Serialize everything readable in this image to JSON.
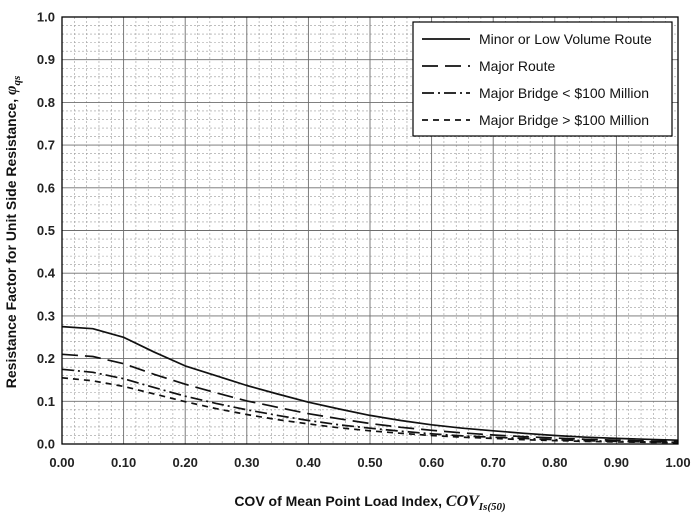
{
  "chart_data": {
    "type": "line",
    "title": "",
    "xlabel": "COV of Mean Point Load Index, ",
    "xlabel_symbol": "COV",
    "xlabel_subscript": "Is(50)",
    "ylabel": "Resistance Factor for Unit Side Resistance, ",
    "ylabel_symbol": "φ",
    "ylabel_subscript": "qs",
    "xlim": [
      0.0,
      1.0
    ],
    "ylim": [
      0.0,
      1.0
    ],
    "x_ticks": [
      "0.00",
      "0.10",
      "0.20",
      "0.30",
      "0.40",
      "0.50",
      "0.60",
      "0.70",
      "0.80",
      "0.90",
      "1.00"
    ],
    "y_ticks": [
      "0.0",
      "0.1",
      "0.2",
      "0.3",
      "0.4",
      "0.5",
      "0.6",
      "0.7",
      "0.8",
      "0.9",
      "1.0"
    ],
    "grid": true,
    "legend_position": "top-right",
    "series": [
      {
        "name": "Minor or Low Volume Route",
        "dash": "solid",
        "x": [
          0.0,
          0.05,
          0.1,
          0.15,
          0.2,
          0.25,
          0.3,
          0.35,
          0.4,
          0.45,
          0.5,
          0.55,
          0.6,
          0.65,
          0.7,
          0.75,
          0.8,
          0.85,
          0.9,
          0.95,
          1.0
        ],
        "y": [
          0.275,
          0.27,
          0.25,
          0.215,
          0.183,
          0.16,
          0.137,
          0.117,
          0.098,
          0.082,
          0.067,
          0.055,
          0.045,
          0.037,
          0.031,
          0.025,
          0.02,
          0.016,
          0.013,
          0.011,
          0.009
        ]
      },
      {
        "name": "Major Route",
        "dash": "longdash",
        "x": [
          0.0,
          0.05,
          0.1,
          0.15,
          0.2,
          0.25,
          0.3,
          0.35,
          0.4,
          0.45,
          0.5,
          0.55,
          0.6,
          0.65,
          0.7,
          0.75,
          0.8,
          0.85,
          0.9,
          0.95,
          1.0
        ],
        "y": [
          0.21,
          0.205,
          0.188,
          0.163,
          0.14,
          0.12,
          0.101,
          0.086,
          0.071,
          0.059,
          0.048,
          0.039,
          0.032,
          0.026,
          0.021,
          0.017,
          0.014,
          0.011,
          0.009,
          0.007,
          0.006
        ]
      },
      {
        "name": "Major Bridge < $100 Million",
        "dash": "dashdot",
        "x": [
          0.0,
          0.05,
          0.1,
          0.15,
          0.2,
          0.25,
          0.3,
          0.35,
          0.4,
          0.45,
          0.5,
          0.55,
          0.6,
          0.65,
          0.7,
          0.75,
          0.8,
          0.85,
          0.9,
          0.95,
          1.0
        ],
        "y": [
          0.175,
          0.168,
          0.153,
          0.132,
          0.112,
          0.095,
          0.08,
          0.067,
          0.055,
          0.045,
          0.037,
          0.03,
          0.024,
          0.019,
          0.016,
          0.013,
          0.01,
          0.008,
          0.006,
          0.005,
          0.004
        ]
      },
      {
        "name": "Major Bridge > $100 Million",
        "dash": "shortdash",
        "x": [
          0.0,
          0.05,
          0.1,
          0.15,
          0.2,
          0.25,
          0.3,
          0.35,
          0.4,
          0.45,
          0.5,
          0.55,
          0.6,
          0.65,
          0.7,
          0.75,
          0.8,
          0.85,
          0.9,
          0.95,
          1.0
        ],
        "y": [
          0.155,
          0.148,
          0.135,
          0.117,
          0.099,
          0.083,
          0.069,
          0.057,
          0.047,
          0.038,
          0.031,
          0.025,
          0.02,
          0.016,
          0.013,
          0.01,
          0.008,
          0.006,
          0.005,
          0.004,
          0.003
        ]
      }
    ]
  }
}
